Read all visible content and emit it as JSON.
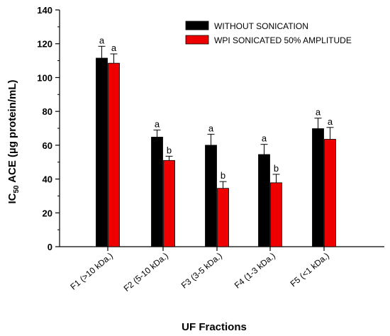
{
  "chart_data": {
    "type": "bar",
    "xlabel": "UF Fractions",
    "ylabel_main": "IC",
    "ylabel_sub": "50",
    "ylabel_rest": " ACE (µg protein/mL)",
    "ylim": [
      0,
      140
    ],
    "yticks": [
      0,
      20,
      40,
      60,
      80,
      100,
      120,
      140
    ],
    "categories": [
      "F1 (>10 kDa.)",
      "F2 (5-10 kDa.)",
      "F3 (3-5 kDa.)",
      "F4 (1-3 kDa.)",
      "F5 (<1 kDa.)"
    ],
    "series": [
      {
        "name": "WITHOUT SONICATION",
        "color": "#000000",
        "values": [
          111.5,
          64.8,
          60.0,
          54.5,
          69.8
        ],
        "errors": [
          7.0,
          4.2,
          6.5,
          6.0,
          6.2
        ],
        "labels": [
          "a",
          "a",
          "a",
          "a",
          "a"
        ]
      },
      {
        "name": "WPI SONICATED 50% AMPLITUDE",
        "color": "#ee0000",
        "values": [
          108.5,
          51.0,
          34.5,
          37.8,
          63.5
        ],
        "errors": [
          5.5,
          2.5,
          4.0,
          5.0,
          7.0
        ],
        "labels": [
          "a",
          "b",
          "b",
          "b",
          "a"
        ]
      }
    ],
    "legend_position": "top-right",
    "grid": false
  }
}
